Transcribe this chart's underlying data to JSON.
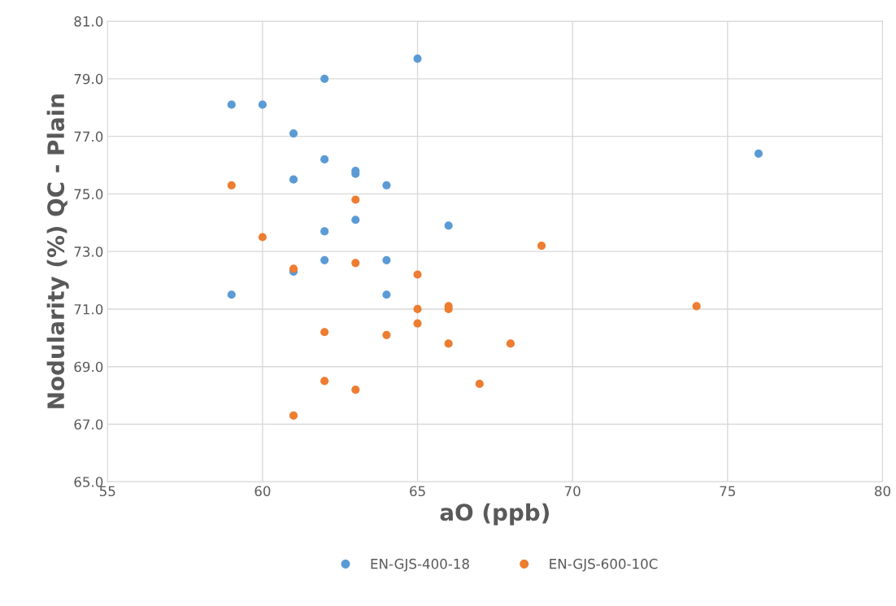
{
  "chart_data": {
    "type": "scatter",
    "xlabel": "aO (ppb)",
    "ylabel": "Nodularity (%) QC - Plain",
    "xlim": [
      55,
      80
    ],
    "xticks": [
      55,
      60,
      65,
      70,
      75,
      80
    ],
    "ylim": [
      65,
      81
    ],
    "yticks": [
      {
        "value": 65,
        "label": "65.0"
      },
      {
        "value": 67,
        "label": "67.0"
      },
      {
        "value": 69,
        "label": "69.0"
      },
      {
        "value": 71,
        "label": "71.0"
      },
      {
        "value": 73,
        "label": "73.0"
      },
      {
        "value": 75,
        "label": "75.0"
      },
      {
        "value": 77,
        "label": "77.0"
      },
      {
        "value": 79,
        "label": "79.0"
      },
      {
        "value": 81,
        "label": "81.0"
      }
    ],
    "grid": true,
    "legend": "bottom",
    "marker": "circle",
    "series": [
      {
        "name": "EN-GJS-400-18",
        "color": "#5b9bd5",
        "x": [
          59,
          60,
          62,
          65,
          61,
          62,
          63,
          63,
          61,
          64,
          76,
          63,
          66,
          62,
          62,
          64,
          61,
          59,
          64
        ],
        "values": [
          78.1,
          78.1,
          79.0,
          79.7,
          77.1,
          76.2,
          75.8,
          75.7,
          75.5,
          75.3,
          76.4,
          74.1,
          73.9,
          73.7,
          72.7,
          72.7,
          72.3,
          71.5,
          71.5
        ]
      },
      {
        "name": "EN-GJS-600-10C",
        "color": "#ed7d31",
        "x": [
          59,
          63,
          60,
          69,
          61,
          63,
          65,
          65,
          66,
          66,
          74,
          65,
          62,
          64,
          66,
          68,
          62,
          67,
          63,
          61
        ],
        "values": [
          75.3,
          74.8,
          73.5,
          73.2,
          72.4,
          72.6,
          72.2,
          71.0,
          71.1,
          71.0,
          71.1,
          70.5,
          70.2,
          70.1,
          69.8,
          69.8,
          68.5,
          68.4,
          68.2,
          67.3
        ]
      }
    ]
  }
}
